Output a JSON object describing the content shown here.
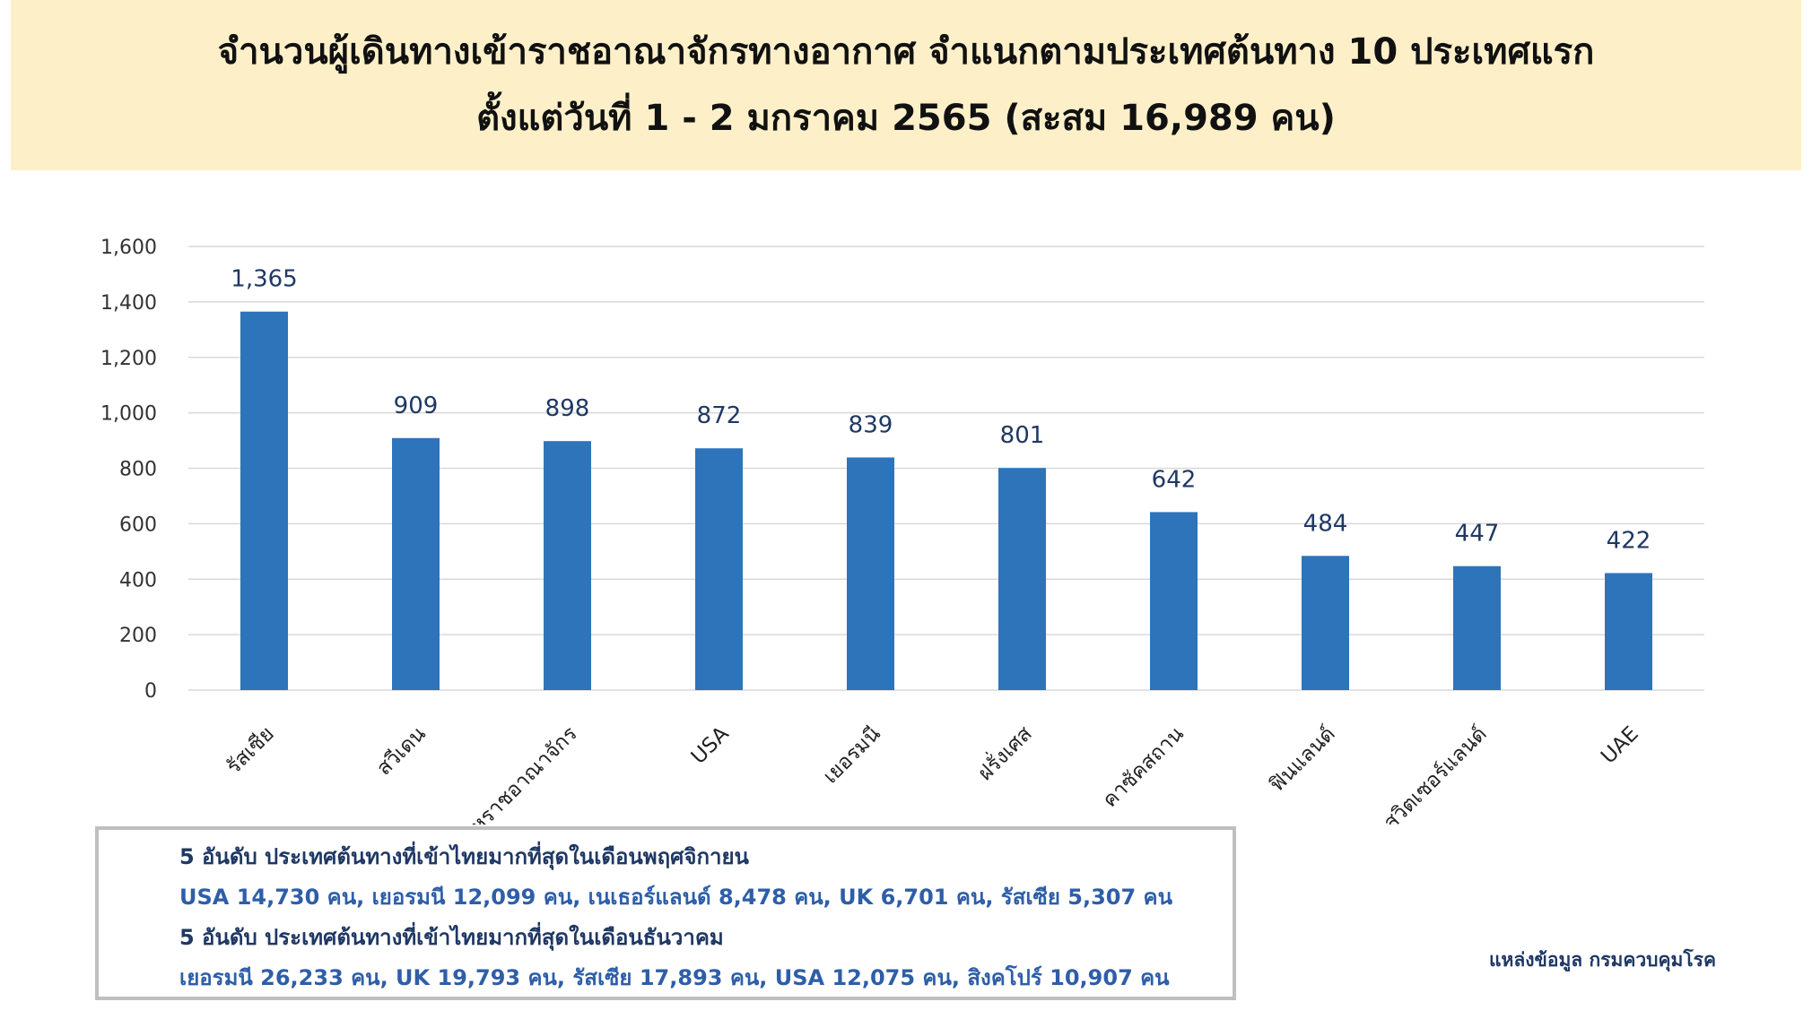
{
  "title": {
    "line1": "จำนวนผู้เดินทางเข้าราชอาณาจักรทางอากาศ จำแนกตามประเทศต้นทาง 10 ประเทศแรก",
    "line2": "ตั้งแต่วันที่  1 - 2  มกราคม 2565  (สะสม 16,989 คน)"
  },
  "chart_data": {
    "type": "bar",
    "categories": [
      "รัสเซีย",
      "สวีเดน",
      "สหราชอาณาจักร",
      "USA",
      "เยอรมนี",
      "ฝรั่งเศส",
      "คาซัคสถาน",
      "ฟินแลนด์",
      "สวิตเซอร์แลนด์",
      "UAE"
    ],
    "values": [
      1365,
      909,
      898,
      872,
      839,
      801,
      642,
      484,
      447,
      422
    ],
    "data_labels": [
      "1,365",
      "909",
      "898",
      "872",
      "839",
      "801",
      "642",
      "484",
      "447",
      "422"
    ],
    "ylim": [
      0,
      1600
    ],
    "yticks": [
      0,
      200,
      400,
      600,
      800,
      1000,
      1200,
      1400,
      1600
    ],
    "ytick_labels": [
      "0",
      "200",
      "400",
      "600",
      "800",
      "1,000",
      "1,200",
      "1,400",
      "1,600"
    ],
    "grid": true,
    "bar_color": "#2e74bb"
  },
  "info": {
    "november_heading": "5 อันดับ ประเทศต้นทางที่เข้าไทยมากที่สุดในเดือนพฤศจิกายน",
    "november_detail": "USA  14,730  คน,  เยอรมนี  12,099  คน,  เนเธอร์แลนด์  8,478  คน, UK  6,701  คน,  รัสเซีย  5,307  คน",
    "december_heading": "5 อันดับ ประเทศต้นทางที่เข้าไทยมากที่สุดในเดือนธันวาคม",
    "december_detail": "เยอรมนี  26,233  คน,  UK 19,793  คน,  รัสเซีย  17,893  คน,  USA  12,075  คน,  สิงคโปร์  10,907  คน"
  },
  "source": "แหล่งข้อมูล กรมควบคุมโรค"
}
